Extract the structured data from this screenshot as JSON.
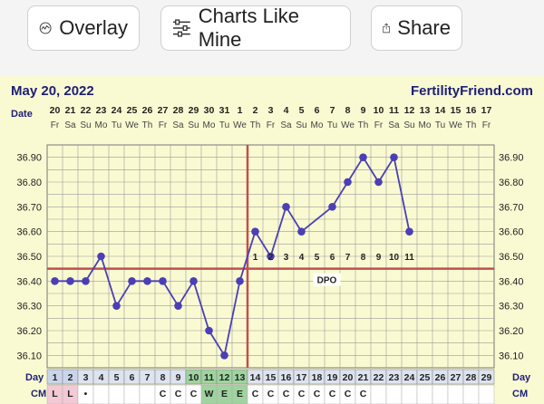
{
  "toolbar": {
    "overlay_label": "Overlay",
    "charts_like_mine_label": "Charts Like Mine",
    "share_label": "Share"
  },
  "chart_header": {
    "date": "May 20, 2022",
    "brand": "FertilityFriend.com"
  },
  "colors": {
    "line": "#4a3fb5",
    "coverline": "#c0504d",
    "ovulation_line": "#c0504d",
    "grid": "#9a9a9a",
    "background": "#fafad2",
    "text_dark": "#1e1e78"
  },
  "chart_data": {
    "type": "line",
    "date_row_label": "Date",
    "day_row_label": "Day",
    "cm_row_label": "CM",
    "dpo_label": "DPO",
    "dates": [
      "20",
      "21",
      "22",
      "23",
      "24",
      "25",
      "26",
      "27",
      "28",
      "29",
      "30",
      "31",
      "1",
      "2",
      "3",
      "4",
      "5",
      "6",
      "7",
      "8",
      "9",
      "10",
      "11",
      "12",
      "13",
      "14",
      "15",
      "16",
      "17"
    ],
    "weekdays": [
      "Fr",
      "Sa",
      "Su",
      "Mo",
      "Tu",
      "We",
      "Th",
      "Fr",
      "Sa",
      "Su",
      "Mo",
      "Tu",
      "We",
      "Th",
      "Fr",
      "Sa",
      "Su",
      "Mo",
      "Tu",
      "We",
      "Th",
      "Fr",
      "Sa",
      "Su",
      "Mo",
      "Tu",
      "We",
      "Th",
      "Fr"
    ],
    "cycle_days": [
      "1",
      "2",
      "3",
      "4",
      "5",
      "6",
      "7",
      "8",
      "9",
      "10",
      "11",
      "12",
      "13",
      "14",
      "15",
      "16",
      "17",
      "18",
      "19",
      "20",
      "21",
      "22",
      "23",
      "24",
      "25",
      "26",
      "27",
      "28",
      "29"
    ],
    "temperatures": [
      36.4,
      36.4,
      36.4,
      36.5,
      36.3,
      36.4,
      36.4,
      36.4,
      36.3,
      36.4,
      36.2,
      36.1,
      36.4,
      36.6,
      36.5,
      36.7,
      36.6,
      null,
      36.7,
      36.8,
      36.9,
      36.8,
      36.9,
      36.6,
      null,
      null,
      null,
      null,
      null
    ],
    "y_ticks": [
      "36.90",
      "36.80",
      "36.70",
      "36.60",
      "36.50",
      "36.40",
      "36.30",
      "36.20",
      "36.10"
    ],
    "ylim": [
      36.05,
      36.95
    ],
    "coverline": 36.45,
    "ovulation_day": 13,
    "dpo_numbers": [
      "1",
      "2",
      "3",
      "4",
      "5",
      "6",
      "7",
      "8",
      "9",
      "10",
      "11"
    ],
    "cm_values": [
      "L",
      "L",
      "•",
      "",
      "",
      "",
      "",
      "C",
      "C",
      "C",
      "W",
      "E",
      "E",
      "C",
      "C",
      "C",
      "C",
      "C",
      "C",
      "C",
      "C",
      "",
      "",
      "",
      "",
      "",
      "",
      "",
      ""
    ],
    "day_highlight": {
      "menses": [
        1,
        2
      ],
      "fertile": [
        10,
        11,
        12,
        13
      ]
    }
  }
}
